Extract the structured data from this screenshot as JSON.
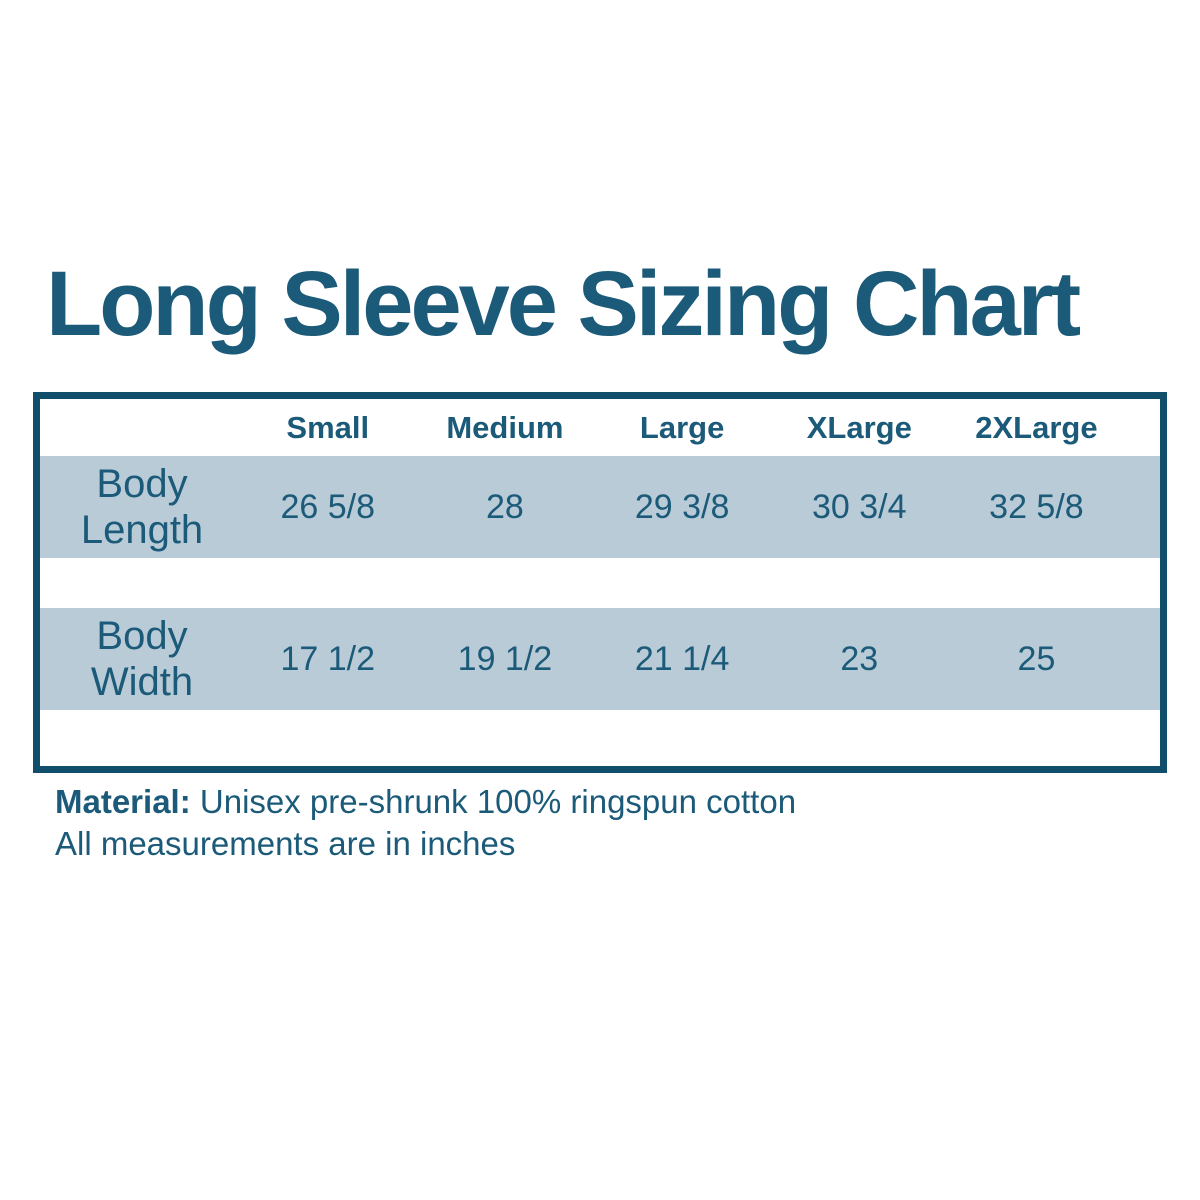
{
  "title": "Long Sleeve Sizing Chart",
  "chart_data": {
    "type": "table",
    "title": "Long Sleeve Sizing Chart",
    "columns": [
      "Small",
      "Medium",
      "Large",
      "XLarge",
      "2XLarge"
    ],
    "rows": [
      {
        "label": "Body Length",
        "values": [
          "26 5/8",
          "28",
          "29 3/8",
          "30 3/4",
          "32 5/8"
        ]
      },
      {
        "label": "Body Width",
        "values": [
          "17 1/2",
          "19 1/2",
          "21 1/4",
          "23",
          "25"
        ]
      }
    ],
    "units": "inches"
  },
  "footer": {
    "material_label": "Material:",
    "material_text": "Unisex pre-shrunk 100% ringspun cotton",
    "note": "All measurements are in inches"
  },
  "colors": {
    "accent": "#1B5A78",
    "border": "#114E6B",
    "row_shade": "#B9CBD7",
    "background": "#FFFFFF"
  }
}
